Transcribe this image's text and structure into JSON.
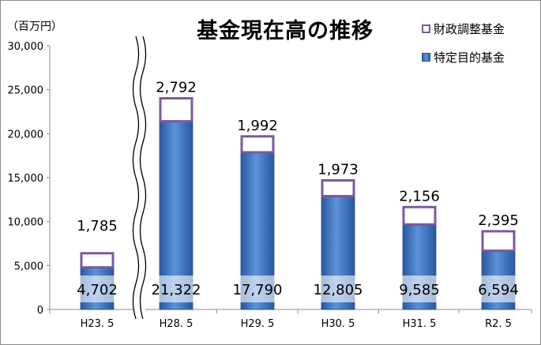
{
  "chart_data": {
    "type": "bar",
    "stacked": true,
    "title": "基金現在高の推移",
    "unit_label": "（百万円）",
    "categories": [
      "H23. 5",
      "H28. 5",
      "H29. 5",
      "H30. 5",
      "H31. 5",
      "R2. 5"
    ],
    "series": [
      {
        "name": "特定目的基金",
        "values": [
          4702,
          21322,
          17790,
          12805,
          9585,
          6594
        ],
        "color": "#3d74c4",
        "style": "filled"
      },
      {
        "name": "財政調整基金",
        "values": [
          1785,
          2792,
          1992,
          1973,
          2156,
          2395
        ],
        "color": "#7a5a9e",
        "style": "outline"
      }
    ],
    "data_labels": {
      "特定目的基金": [
        "4,702",
        "21,322",
        "17,790",
        "12,805",
        "9,585",
        "6,594"
      ],
      "財政調整基金": [
        "1,785",
        "2,792",
        "1,992",
        "1,973",
        "2,156",
        "2,395"
      ]
    },
    "yticks": [
      "0",
      "5,000",
      "10,000",
      "15,000",
      "20,000",
      "25,000",
      "30,000"
    ],
    "ylim": [
      0,
      30000
    ],
    "axis_break_after_category": 0,
    "grid": false,
    "legend_position": "top-right"
  }
}
